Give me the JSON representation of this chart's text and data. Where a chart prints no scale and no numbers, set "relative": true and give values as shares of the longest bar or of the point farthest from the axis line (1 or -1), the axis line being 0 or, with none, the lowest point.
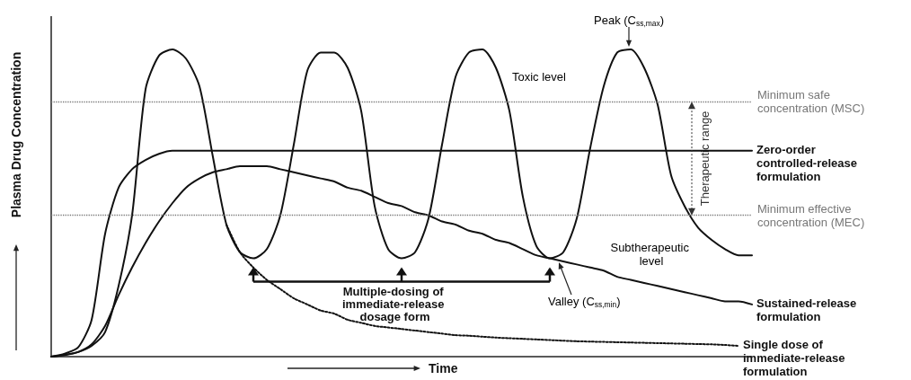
{
  "chart_data": {
    "type": "line",
    "relative": true,
    "tick_labels": false,
    "marker": "none",
    "line_style": "solid",
    "xlabel": "Time",
    "ylabel": "Plasma Drug Concentration",
    "categories": [
      null,
      null,
      null,
      null,
      null,
      null,
      null,
      null,
      null,
      null,
      null,
      null,
      null,
      null,
      null,
      null,
      null,
      null,
      null,
      null,
      null,
      null,
      null,
      null,
      null,
      null,
      null,
      null,
      null,
      null,
      null,
      null,
      null,
      null,
      null,
      null,
      null,
      null,
      null,
      null,
      null,
      null,
      null,
      null,
      null,
      null,
      null,
      null,
      null,
      null,
      null,
      null,
      null
    ],
    "series": [
      {
        "name": "Multiple-dosing of immediate-release dosage form",
        "color": "#111111",
        "values": [
          0,
          0.006,
          0.015,
          0.035,
          0.08,
          0.23,
          0.46,
          0.87,
          0.98,
          1,
          0.97,
          0.88,
          0.65,
          0.43,
          0.34,
          0.32,
          0.35,
          0.46,
          0.69,
          0.93,
          0.99,
          0.99,
          0.94,
          0.8,
          0.49,
          0.35,
          0.32,
          0.34,
          0.45,
          0.69,
          0.91,
          0.99,
          1,
          0.94,
          0.8,
          0.52,
          0.36,
          0.32,
          0.34,
          0.45,
          0.68,
          0.88,
          0.99,
          1,
          0.94,
          0.82,
          0.59,
          0.49,
          0.42,
          0.38,
          0.35,
          0.33,
          0.33
        ]
      },
      {
        "name": "Zero-order controlled-release formulation",
        "color": "#111111",
        "values": [
          0,
          0.01,
          0.03,
          0.12,
          0.4,
          0.55,
          0.61,
          0.64,
          0.66,
          0.67,
          0.67,
          0.67,
          0.67,
          0.67,
          0.67,
          0.67,
          0.67,
          0.67,
          0.67,
          0.67,
          0.67,
          0.67,
          0.67,
          0.67,
          0.67,
          0.67,
          0.67,
          0.67,
          0.67,
          0.67,
          0.67,
          0.67,
          0.67,
          0.67,
          0.67,
          0.67,
          0.67,
          0.67,
          0.67,
          0.67,
          0.67,
          0.67,
          0.67,
          0.67,
          0.67,
          0.67,
          0.67,
          0.67,
          0.67,
          0.67,
          0.67,
          0.67,
          0.67
        ]
      },
      {
        "name": "Sustained-release formulation",
        "color": "#111111",
        "values": [
          0,
          0.005,
          0.015,
          0.04,
          0.1,
          0.2,
          0.29,
          0.37,
          0.44,
          0.5,
          0.55,
          0.58,
          0.6,
          0.61,
          0.62,
          0.62,
          0.62,
          0.61,
          0.6,
          0.59,
          0.58,
          0.57,
          0.55,
          0.54,
          0.52,
          0.5,
          0.49,
          0.47,
          0.46,
          0.44,
          0.43,
          0.41,
          0.4,
          0.38,
          0.37,
          0.35,
          0.33,
          0.32,
          0.31,
          0.3,
          0.29,
          0.28,
          0.26,
          0.25,
          0.24,
          0.23,
          0.22,
          0.21,
          0.2,
          0.19,
          0.18,
          0.18,
          0.17
        ]
      },
      {
        "name": "Single dose of immediate-release formulation",
        "color": "#111111",
        "line_style": "dotted",
        "values": [
          null,
          null,
          null,
          null,
          null,
          null,
          null,
          null,
          null,
          null,
          null,
          null,
          null,
          0.43,
          0.34,
          0.29,
          0.25,
          0.22,
          0.19,
          0.17,
          0.15,
          0.14,
          0.12,
          0.11,
          0.1,
          0.095,
          0.09,
          0.085,
          0.08,
          0.075,
          0.07,
          0.068,
          0.065,
          0.062,
          0.06,
          0.058,
          0.056,
          0.054,
          0.052,
          0.05,
          0.049,
          0.048,
          0.047,
          0.046,
          0.045,
          0.044,
          0.043,
          0.042,
          0.041,
          0.04,
          0.038,
          0.035,
          null
        ]
      }
    ],
    "ref_lines": [
      {
        "axis": "y",
        "value": 0.83,
        "label": "Minimum safe concentration (MSC)",
        "color": "#777777",
        "line_style": "dotted"
      },
      {
        "axis": "y",
        "value": 0.46,
        "label": "Minimum effective concentration (MEC)",
        "color": "#777777",
        "line_style": "dotted"
      }
    ],
    "annotations": [
      "Therapeutic range",
      "Toxic level",
      "Peak (C$_{ss,max}$)",
      "Subtherapeutic level",
      "Valley (C$_{ss,min}$)"
    ]
  }
}
